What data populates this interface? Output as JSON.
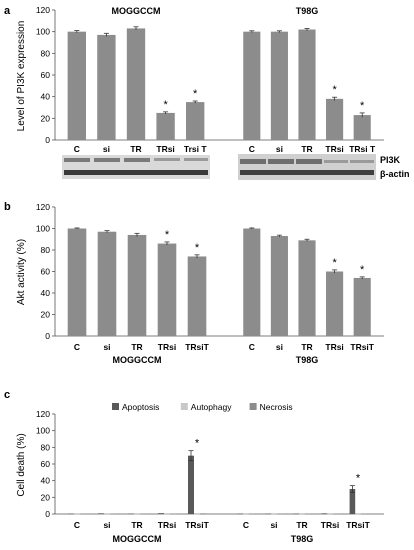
{
  "panels": [
    {
      "label": "a",
      "chart_data": {
        "type": "bar",
        "ylabel": "Level of PI3K expression",
        "ylim": [
          0,
          120
        ],
        "yticks": [
          0,
          20,
          40,
          60,
          80,
          100,
          120
        ],
        "grid": false,
        "bar_color": "#8c8c8c",
        "groups": [
          {
            "name": "MOGGCCM",
            "categories": [
              "C",
              "si",
              "TR",
              "TRsi",
              "Trsi T"
            ],
            "values": [
              100,
              97,
              103,
              25,
              35
            ],
            "errors": [
              1,
              1.5,
              1.5,
              1,
              1
            ],
            "stars": [
              false,
              false,
              false,
              true,
              true
            ]
          },
          {
            "name": "T98G",
            "categories": [
              "C",
              "si",
              "TR",
              "TRsi",
              "TRsi T"
            ],
            "values": [
              100,
              100,
              102,
              38,
              23
            ],
            "errors": [
              0.8,
              0.8,
              1,
              1.5,
              2
            ],
            "stars": [
              false,
              false,
              false,
              true,
              true
            ]
          }
        ]
      },
      "blot_labels": [
        "PI3K",
        "β-actin"
      ]
    },
    {
      "label": "b",
      "chart_data": {
        "type": "bar",
        "ylabel": "Akt activity (%)",
        "ylim": [
          0,
          120
        ],
        "yticks": [
          0,
          20,
          40,
          60,
          80,
          100,
          120
        ],
        "grid": false,
        "bar_color": "#8c8c8c",
        "groups": [
          {
            "name": "MOGGCCM",
            "categories": [
              "C",
              "si",
              "TR",
              "TRsi",
              "TRsiT"
            ],
            "values": [
              100,
              97,
              94,
              86,
              74
            ],
            "errors": [
              0.5,
              1,
              1.5,
              1.5,
              1.5
            ],
            "stars": [
              false,
              false,
              false,
              true,
              true
            ]
          },
          {
            "name": "T98G",
            "categories": [
              "C",
              "si",
              "TR",
              "TRsi",
              "TRsiT"
            ],
            "values": [
              100,
              93,
              89,
              60,
              54
            ],
            "errors": [
              0.5,
              0.8,
              1,
              1.5,
              1
            ],
            "stars": [
              false,
              false,
              false,
              true,
              true
            ]
          }
        ]
      }
    },
    {
      "label": "c",
      "chart_data": {
        "type": "bar",
        "ylabel": "Cell death (%)",
        "ylim": [
          0,
          120
        ],
        "yticks": [
          0,
          20,
          40,
          60,
          80,
          100,
          120
        ],
        "grid": false,
        "legend": {
          "placement": "top",
          "entries": [
            {
              "name": "Apoptosis",
              "color": "#595959"
            },
            {
              "name": "Autophagy",
              "color": "#c8c8c8"
            },
            {
              "name": "Necrosis",
              "color": "#8c8c8c"
            }
          ]
        },
        "groups": [
          {
            "name": "MOGGCCM",
            "categories": [
              "C",
              "si",
              "TR",
              "TRsi",
              "TRsiT"
            ],
            "series": [
              {
                "name": "Apoptosis",
                "values": [
                  0.5,
                  0.8,
                  0.5,
                  1,
                  70
                ],
                "errors": [
                  0,
                  0,
                  0,
                  0,
                  6
                ]
              },
              {
                "name": "Autophagy",
                "values": [
                  0.3,
                  0.3,
                  0.3,
                  0.3,
                  0.3
                ],
                "errors": [
                  0,
                  0,
                  0,
                  0,
                  0
                ]
              },
              {
                "name": "Necrosis",
                "values": [
                  0.3,
                  0.5,
                  0.3,
                  0.5,
                  0.8
                ],
                "errors": [
                  0,
                  0,
                  0,
                  0,
                  0
                ]
              }
            ],
            "stars": [
              false,
              false,
              false,
              false,
              true
            ]
          },
          {
            "name": "T98G",
            "categories": [
              "C",
              "si",
              "TR",
              "TRsi",
              "TRsiT"
            ],
            "series": [
              {
                "name": "Apoptosis",
                "values": [
                  0.5,
                  0.5,
                  0.5,
                  0.8,
                  30
                ],
                "errors": [
                  0,
                  0,
                  0,
                  0,
                  4
                ]
              },
              {
                "name": "Autophagy",
                "values": [
                  0.3,
                  0.3,
                  0.3,
                  0.3,
                  0.3
                ],
                "errors": [
                  0,
                  0,
                  0,
                  0,
                  0
                ]
              },
              {
                "name": "Necrosis",
                "values": [
                  0.3,
                  0.3,
                  0.3,
                  0.5,
                  0.5
                ],
                "errors": [
                  0,
                  0,
                  0,
                  0,
                  0
                ]
              }
            ],
            "stars": [
              false,
              false,
              false,
              false,
              true
            ]
          }
        ]
      }
    }
  ]
}
